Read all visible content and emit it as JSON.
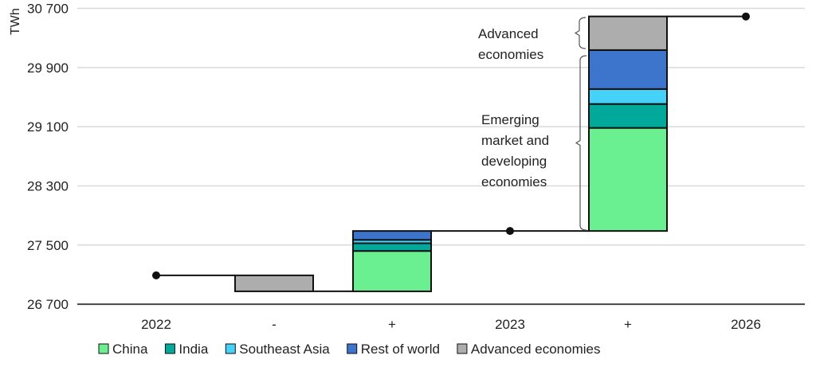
{
  "chart_data": {
    "type": "bar",
    "subtype": "waterfall",
    "ylabel": "TWh",
    "ylim": [
      26700,
      30700
    ],
    "yticks": [
      26700,
      27500,
      28300,
      29100,
      29900,
      30700
    ],
    "ytick_labels": [
      "26 700",
      "27 500",
      "28 300",
      "29 100",
      "29 900",
      "30 700"
    ],
    "grid": true,
    "legend_position": "bottom",
    "categories": [
      "2022",
      "-",
      "+",
      "2023",
      "+",
      "2026"
    ],
    "totals": {
      "2022": 27090,
      "2023": 27690,
      "2026": 30590
    },
    "series": [
      {
        "name": "China",
        "color": "#6af090",
        "values": [
          null,
          0,
          546,
          null,
          1394,
          null
        ]
      },
      {
        "name": "India",
        "color": "#00a99a",
        "values": [
          null,
          0,
          104,
          null,
          323,
          null
        ]
      },
      {
        "name": "Southeast Asia",
        "color": "#45d2f8",
        "values": [
          null,
          0,
          46,
          null,
          202,
          null
        ]
      },
      {
        "name": "Rest of world",
        "color": "#3d74cc",
        "values": [
          null,
          0,
          120,
          null,
          527,
          null
        ]
      },
      {
        "name": "Advanced economies",
        "color": "#adadad",
        "values": [
          null,
          -216,
          0,
          null,
          455,
          null
        ]
      }
    ],
    "annotations": [
      {
        "lines": [
          "Advanced",
          "economies"
        ]
      },
      {
        "lines": [
          "Emerging",
          "market and",
          "developing",
          "economies"
        ]
      }
    ]
  }
}
